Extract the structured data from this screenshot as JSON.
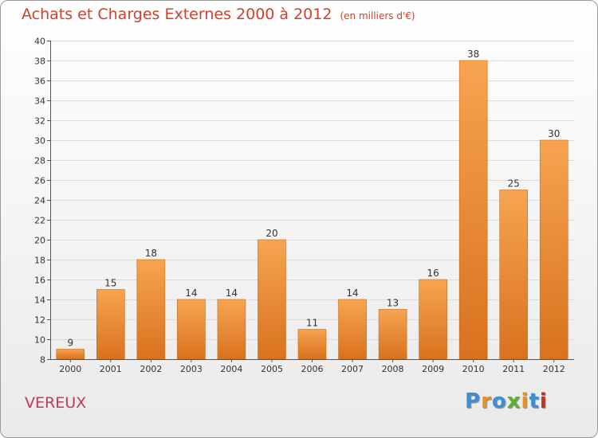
{
  "header": {
    "title": "Achats et Charges Externes 2000 à 2012",
    "unit": "(en milliers d'€)"
  },
  "footer": {
    "commune": "VEREUX",
    "logo": {
      "text": "Proxiti",
      "colors": [
        "#3f8fd0",
        "#e89020",
        "#3f8fd0",
        "#5ab030",
        "#e89020",
        "#3f8fd0",
        "#c0302a"
      ]
    }
  },
  "colors": {
    "bar_light": "#f7a450",
    "bar_dark": "#d8721e",
    "grid": "#dcdcdc",
    "title": "#d0402c",
    "commune": "#c03a5a"
  },
  "chart_data": {
    "type": "bar",
    "categories": [
      "2000",
      "2001",
      "2002",
      "2003",
      "2004",
      "2005",
      "2006",
      "2007",
      "2008",
      "2009",
      "2010",
      "2011",
      "2012"
    ],
    "values": [
      9,
      15,
      18,
      14,
      14,
      20,
      11,
      14,
      13,
      16,
      38,
      25,
      30
    ],
    "data_labels": [
      "9",
      "15",
      "18",
      "14",
      "14",
      "20",
      "11",
      "14",
      "13",
      "16",
      "38",
      "25",
      "30"
    ],
    "ylim": [
      8,
      40
    ],
    "yticks": [
      8,
      10,
      12,
      14,
      16,
      18,
      20,
      22,
      24,
      26,
      28,
      30,
      32,
      34,
      36,
      38,
      40
    ],
    "grid": true,
    "legend": "none"
  }
}
